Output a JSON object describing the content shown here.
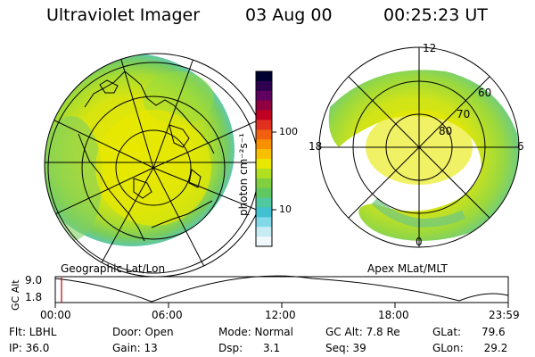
{
  "header": {
    "title": "Ultraviolet Imager",
    "date": "03 Aug 00",
    "time": "00:25:23 UT"
  },
  "left_panel": {
    "caption": "Geographic Lat/Lon"
  },
  "right_panel": {
    "caption": "Apex MLat/MLT",
    "lat_labels": [
      "60",
      "70",
      "80"
    ],
    "mlt_labels": [
      "12",
      "18",
      "6",
      "0"
    ]
  },
  "colorbar": {
    "unit_label": "photon cm⁻²s⁻¹",
    "tick_labels": [
      "100",
      "10"
    ],
    "colors": [
      "#000030",
      "#300050",
      "#600060",
      "#900040",
      "#c00020",
      "#e03020",
      "#f06010",
      "#f89000",
      "#f8c000",
      "#e8e800",
      "#b0e020",
      "#80d040",
      "#60c860",
      "#50c8a0",
      "#40c0d0",
      "#80d8e8",
      "#c8ecf4",
      "#f0f8fc"
    ]
  },
  "altitude_plot": {
    "ylabel": "GC Alt",
    "y_ticks": [
      "9.0",
      "1.8"
    ],
    "x_ticks": [
      "00:00",
      "06:00",
      "12:00",
      "18:00",
      "23:59"
    ]
  },
  "info": {
    "flt": "Flt: LBHL",
    "ip": "IP: 36.0",
    "door": "Door: Open",
    "gain": "Gain: 13",
    "mode": "Mode: Normal",
    "dsp": "Dsp:      3.1",
    "gc_alt": "GC Alt: 7.8 Re",
    "seq": "Seq: 39",
    "glat": "GLat:      79.6",
    "glon": "GLon:      29.2"
  }
}
